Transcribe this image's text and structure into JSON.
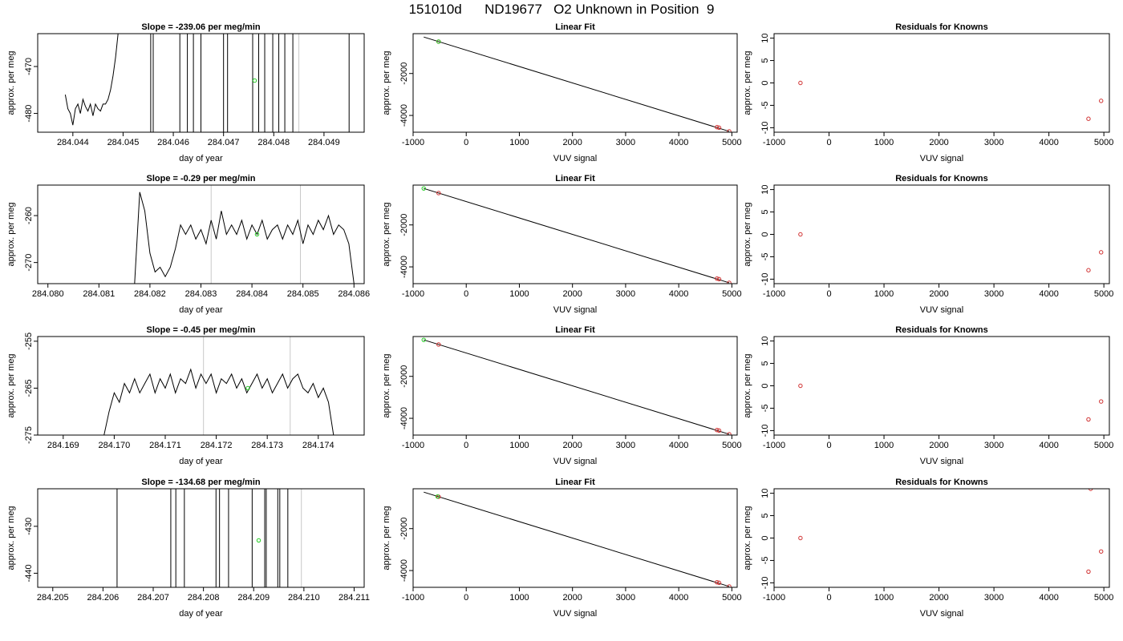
{
  "page": {
    "title": "151010d      ND19677   O2 Unknown in Position  9"
  },
  "chart_data": [
    {
      "type": "line",
      "kind": "trace",
      "title": "Slope =  -239.06  per meg/min",
      "xlabel": "day of year",
      "ylabel": "approx. per meg",
      "xlim": [
        284.0433,
        284.0498
      ],
      "ylim": [
        -484,
        -463
      ],
      "xticks": [
        "284.044",
        "284.045",
        "284.046",
        "284.047",
        "284.048",
        "284.049"
      ],
      "yticks": [
        "-470",
        "-480"
      ],
      "series": [
        {
          "x": [
            284.04385,
            284.0439,
            284.04395,
            284.044,
            284.04405,
            284.0441,
            284.04415,
            284.0442,
            284.04425,
            284.0443,
            284.04435,
            284.0444,
            284.04445,
            284.0445,
            284.04455,
            284.0446,
            284.04465,
            284.0447,
            284.04475,
            284.0448,
            284.04485,
            284.0449
          ],
          "y": [
            -476,
            -479,
            -480,
            -482.5,
            -479,
            -478,
            -480,
            -477,
            -478.5,
            -479.5,
            -478,
            -480.5,
            -478,
            -479,
            -479.5,
            -478,
            -478,
            -477,
            -475,
            -472,
            -468,
            -463
          ]
        }
      ],
      "vlines_dark": [
        284.04555,
        284.0456,
        284.04613,
        284.04628,
        284.0464,
        284.04655,
        284.047,
        284.04708,
        284.04758,
        284.0477,
        284.04782,
        284.04798,
        284.0481,
        284.04822,
        284.04838,
        284.0495
      ],
      "vlines_grey": [
        284.0485
      ],
      "marker": {
        "x": 284.04762,
        "y": -473
      }
    },
    {
      "type": "line",
      "kind": "fit",
      "title": "Linear Fit",
      "xlabel": "VUV signal",
      "ylabel": "approx. per meg",
      "xlim": [
        -1000,
        5100
      ],
      "ylim": [
        -4800,
        -100
      ],
      "xticks": [
        "-1000",
        "0",
        "1000",
        "2000",
        "3000",
        "4000",
        "5000"
      ],
      "yticks": [
        "-2000",
        "-4000"
      ],
      "line": [
        [
          -800,
          -260
        ],
        [
          4950,
          -4760
        ]
      ],
      "green_points": [
        [
          -520,
          -480
        ]
      ],
      "red_points": [
        [
          -520,
          -480
        ],
        [
          4720,
          -4560
        ],
        [
          4760,
          -4585
        ],
        [
          4950,
          -4760
        ]
      ]
    },
    {
      "type": "scatter",
      "kind": "residuals",
      "title": "Residuals for Knowns",
      "xlabel": "VUV signal",
      "ylabel": "approx. per meg",
      "xlim": [
        -1000,
        5100
      ],
      "ylim": [
        -11,
        11
      ],
      "xticks": [
        "-1000",
        "0",
        "1000",
        "2000",
        "3000",
        "4000",
        "5000"
      ],
      "yticks": [
        "10",
        "5",
        "0",
        "-5",
        "-10"
      ],
      "red_points": [
        [
          -520,
          0
        ],
        [
          4720,
          -8
        ],
        [
          4950,
          -4
        ]
      ]
    },
    {
      "type": "line",
      "kind": "trace",
      "title": "Slope =  -0.29  per meg/min",
      "xlabel": "day of year",
      "ylabel": "approx. per meg",
      "xlim": [
        284.0798,
        284.0862
      ],
      "ylim": [
        -274.5,
        -253.5
      ],
      "xticks": [
        "284.080",
        "284.081",
        "284.082",
        "284.083",
        "284.084",
        "284.085",
        "284.086"
      ],
      "yticks": [
        "-260",
        "-270"
      ],
      "series": [
        {
          "x": [
            284.0817,
            284.0818,
            284.0819,
            284.082,
            284.0821,
            284.0822,
            284.0823,
            284.0824,
            284.0825,
            284.0826,
            284.0827,
            284.0828,
            284.0829,
            284.083,
            284.0831,
            284.0832,
            284.0833,
            284.0834,
            284.0835,
            284.0836,
            284.0837,
            284.0838,
            284.0839,
            284.084,
            284.0841,
            284.0842,
            284.0843,
            284.0844,
            284.0845,
            284.0846,
            284.0847,
            284.0848,
            284.0849,
            284.085,
            284.0851,
            284.0852,
            284.0853,
            284.0854,
            284.0855,
            284.0856,
            284.0857,
            284.0858,
            284.0859,
            284.086
          ],
          "y": [
            -274.5,
            -255,
            -259,
            -268,
            -272,
            -271,
            -273,
            -271,
            -267,
            -262,
            -264,
            -262,
            -265,
            -263,
            -266,
            -261,
            -265,
            -259,
            -264,
            -262,
            -264,
            -261,
            -265,
            -262,
            -264,
            -261,
            -265,
            -263,
            -262,
            -265,
            -262,
            -264,
            -261,
            -266,
            -262,
            -264,
            -261,
            -263,
            -260,
            -264,
            -262,
            -263,
            -266,
            -274.5
          ]
        }
      ],
      "vlines_dark": [],
      "vlines_grey": [
        284.0832,
        284.08495
      ],
      "marker": {
        "x": 284.0841,
        "y": -264
      }
    },
    {
      "type": "line",
      "kind": "fit",
      "title": "Linear Fit",
      "xlabel": "VUV signal",
      "ylabel": "approx. per meg",
      "xlim": [
        -1000,
        5100
      ],
      "ylim": [
        -4800,
        -100
      ],
      "xticks": [
        "-1000",
        "0",
        "1000",
        "2000",
        "3000",
        "4000",
        "5000"
      ],
      "yticks": [
        "-2000",
        "-4000"
      ],
      "line": [
        [
          -800,
          -260
        ],
        [
          4950,
          -4760
        ]
      ],
      "green_points": [
        [
          -800,
          -260
        ]
      ],
      "red_points": [
        [
          -520,
          -480
        ],
        [
          4720,
          -4560
        ],
        [
          4760,
          -4585
        ],
        [
          4950,
          -4760
        ]
      ]
    },
    {
      "type": "scatter",
      "kind": "residuals",
      "title": "Residuals for Knowns",
      "xlabel": "VUV signal",
      "ylabel": "approx. per meg",
      "xlim": [
        -1000,
        5100
      ],
      "ylim": [
        -11,
        11
      ],
      "xticks": [
        "-1000",
        "0",
        "1000",
        "2000",
        "3000",
        "4000",
        "5000"
      ],
      "yticks": [
        "10",
        "5",
        "0",
        "-5",
        "-10"
      ],
      "red_points": [
        [
          -520,
          0
        ],
        [
          4720,
          -8
        ],
        [
          4950,
          -4
        ]
      ]
    },
    {
      "type": "line",
      "kind": "trace",
      "title": "Slope =  -0.45  per meg/min",
      "xlabel": "day of year",
      "ylabel": "approx. per meg",
      "xlim": [
        284.1685,
        284.1749
      ],
      "ylim": [
        -275,
        -254
      ],
      "xticks": [
        "284.169",
        "284.170",
        "284.171",
        "284.172",
        "284.173",
        "284.174"
      ],
      "yticks": [
        "-255",
        "-265",
        "-275"
      ],
      "series": [
        {
          "x": [
            284.1698,
            284.1699,
            284.17,
            284.1701,
            284.1702,
            284.1703,
            284.1704,
            284.1705,
            284.1706,
            284.1707,
            284.1708,
            284.1709,
            284.171,
            284.1711,
            284.1712,
            284.1713,
            284.1714,
            284.1715,
            284.1716,
            284.1717,
            284.1718,
            284.1719,
            284.172,
            284.1721,
            284.1722,
            284.1723,
            284.1724,
            284.1725,
            284.1726,
            284.1727,
            284.1728,
            284.1729,
            284.173,
            284.1731,
            284.1732,
            284.1733,
            284.1734,
            284.1735,
            284.1736,
            284.1737,
            284.1738,
            284.1739,
            284.174,
            284.1741,
            284.1742,
            284.1743
          ],
          "y": [
            -275,
            -270,
            -266,
            -268,
            -264,
            -266,
            -263,
            -266,
            -264,
            -262,
            -266,
            -263,
            -265,
            -262,
            -266,
            -263,
            -264,
            -261,
            -265,
            -262,
            -264,
            -262,
            -266,
            -263,
            -264,
            -262,
            -265,
            -263,
            -266,
            -264,
            -262,
            -265,
            -263,
            -266,
            -264,
            -262,
            -265,
            -263,
            -262,
            -265,
            -266,
            -264,
            -267,
            -265,
            -268,
            -275
          ]
        }
      ],
      "vlines_dark": [],
      "vlines_grey": [
        284.17175,
        284.17345
      ],
      "marker": {
        "x": 284.17262,
        "y": -265
      }
    },
    {
      "type": "line",
      "kind": "fit",
      "title": "Linear Fit",
      "xlabel": "VUV signal",
      "ylabel": "approx. per meg",
      "xlim": [
        -1000,
        5100
      ],
      "ylim": [
        -4800,
        -100
      ],
      "xticks": [
        "-1000",
        "0",
        "1000",
        "2000",
        "3000",
        "4000",
        "5000"
      ],
      "yticks": [
        "-2000",
        "-4000"
      ],
      "line": [
        [
          -800,
          -260
        ],
        [
          4950,
          -4760
        ]
      ],
      "green_points": [
        [
          -800,
          -260
        ]
      ],
      "red_points": [
        [
          -520,
          -480
        ],
        [
          4720,
          -4560
        ],
        [
          4760,
          -4585
        ],
        [
          4950,
          -4760
        ]
      ]
    },
    {
      "type": "scatter",
      "kind": "residuals",
      "title": "Residuals for Knowns",
      "xlabel": "VUV signal",
      "ylabel": "approx. per meg",
      "xlim": [
        -1000,
        5100
      ],
      "ylim": [
        -11,
        11
      ],
      "xticks": [
        "-1000",
        "0",
        "1000",
        "2000",
        "3000",
        "4000",
        "5000"
      ],
      "yticks": [
        "10",
        "5",
        "0",
        "-5",
        "-10"
      ],
      "red_points": [
        [
          -520,
          0
        ],
        [
          4720,
          -7.5
        ],
        [
          4950,
          -3.5
        ]
      ]
    },
    {
      "type": "line",
      "kind": "trace",
      "title": "Slope =  -134.68  per meg/min",
      "xlabel": "day of year",
      "ylabel": "approx. per meg",
      "xlim": [
        284.2047,
        284.2112
      ],
      "ylim": [
        -443,
        -422
      ],
      "xticks": [
        "284.205",
        "284.206",
        "284.207",
        "284.208",
        "284.209",
        "284.210",
        "284.211"
      ],
      "yticks": [
        "-430",
        "-440"
      ],
      "series": [],
      "vlines_dark": [
        284.20628,
        284.20735,
        284.20745,
        284.20762,
        284.20825,
        284.20832,
        284.2085,
        284.20897,
        284.20922,
        284.20925,
        284.20948,
        284.20952,
        284.20968
      ],
      "vlines_grey": [
        284.20995
      ],
      "marker": {
        "x": 284.2091,
        "y": -433
      }
    },
    {
      "type": "line",
      "kind": "fit",
      "title": "Linear Fit",
      "xlabel": "VUV signal",
      "ylabel": "approx. per meg",
      "xlim": [
        -1000,
        5100
      ],
      "ylim": [
        -4800,
        -100
      ],
      "xticks": [
        "-1000",
        "0",
        "1000",
        "2000",
        "3000",
        "4000",
        "5000"
      ],
      "yticks": [
        "-2000",
        "-4000"
      ],
      "line": [
        [
          -800,
          -260
        ],
        [
          4950,
          -4760
        ]
      ],
      "green_points": [
        [
          -540,
          -470
        ]
      ],
      "red_points": [
        [
          -520,
          -480
        ],
        [
          4720,
          -4560
        ],
        [
          4760,
          -4585
        ],
        [
          4950,
          -4760
        ]
      ]
    },
    {
      "type": "scatter",
      "kind": "residuals",
      "title": "Residuals for Knowns",
      "xlabel": "VUV signal",
      "ylabel": "approx. per meg",
      "xlim": [
        -1000,
        5100
      ],
      "ylim": [
        -11,
        11
      ],
      "xticks": [
        "-1000",
        "0",
        "1000",
        "2000",
        "3000",
        "4000",
        "5000"
      ],
      "yticks": [
        "10",
        "5",
        "0",
        "-5",
        "-10"
      ],
      "red_points": [
        [
          -520,
          0
        ],
        [
          4720,
          -7.5
        ],
        [
          4950,
          -3
        ],
        [
          4760,
          11
        ]
      ]
    }
  ]
}
